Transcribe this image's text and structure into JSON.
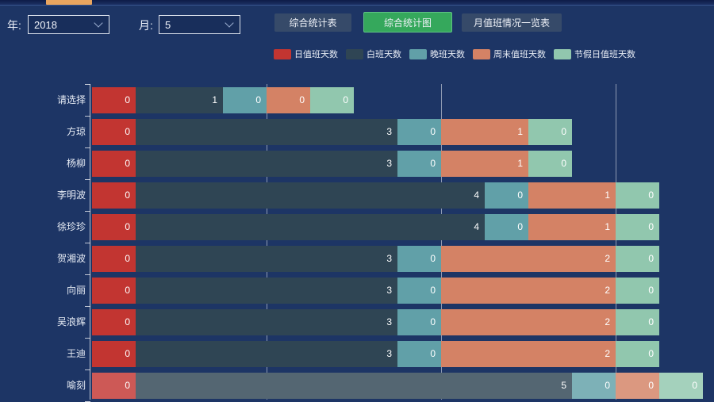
{
  "window": {
    "top_tab_color": "#e9a55f",
    "background_color": "#1d3565"
  },
  "toolbar": {
    "year_label": "年:",
    "year_value": "2018",
    "month_label": "月:",
    "month_value": "5",
    "buttons": [
      {
        "label": "综合统计表",
        "active": false
      },
      {
        "label": "综合统计图",
        "active": true,
        "active_color": "#35a85c"
      },
      {
        "label": "月值班情况一览表",
        "active": false
      }
    ]
  },
  "chart_data": {
    "type": "bar",
    "orientation": "horizontal",
    "stacked": true,
    "title": "",
    "legend_position": "top",
    "value_labels_visible": true,
    "categories": [
      "请选择",
      "方琼",
      "杨柳",
      "李明波",
      "徐珍珍",
      "贺湘波",
      "向丽",
      "吴浪辉",
      "王迪",
      "喻刻"
    ],
    "series": [
      {
        "name": "日值班天数",
        "color": "#c23531",
        "values": [
          0,
          0,
          0,
          0,
          0,
          0,
          0,
          0,
          0,
          0
        ]
      },
      {
        "name": "白班天数",
        "color": "#2f4554",
        "values": [
          1,
          3,
          3,
          4,
          4,
          3,
          3,
          3,
          3,
          5
        ]
      },
      {
        "name": "晚班天数",
        "color": "#61a0a8",
        "values": [
          0,
          0,
          0,
          0,
          0,
          0,
          0,
          0,
          0,
          0
        ]
      },
      {
        "name": "周末值班天数",
        "color": "#d48265",
        "values": [
          0,
          1,
          1,
          1,
          1,
          2,
          2,
          2,
          2,
          0
        ]
      },
      {
        "name": "节假日值班天数",
        "color": "#91c7ae",
        "values": [
          0,
          0,
          0,
          0,
          0,
          0,
          0,
          0,
          0,
          0
        ]
      }
    ],
    "highlighted_category": "喻刻",
    "xaxis": {
      "tick_labels_visible": false,
      "gridlines_at_values": [
        2,
        4,
        6
      ]
    }
  }
}
